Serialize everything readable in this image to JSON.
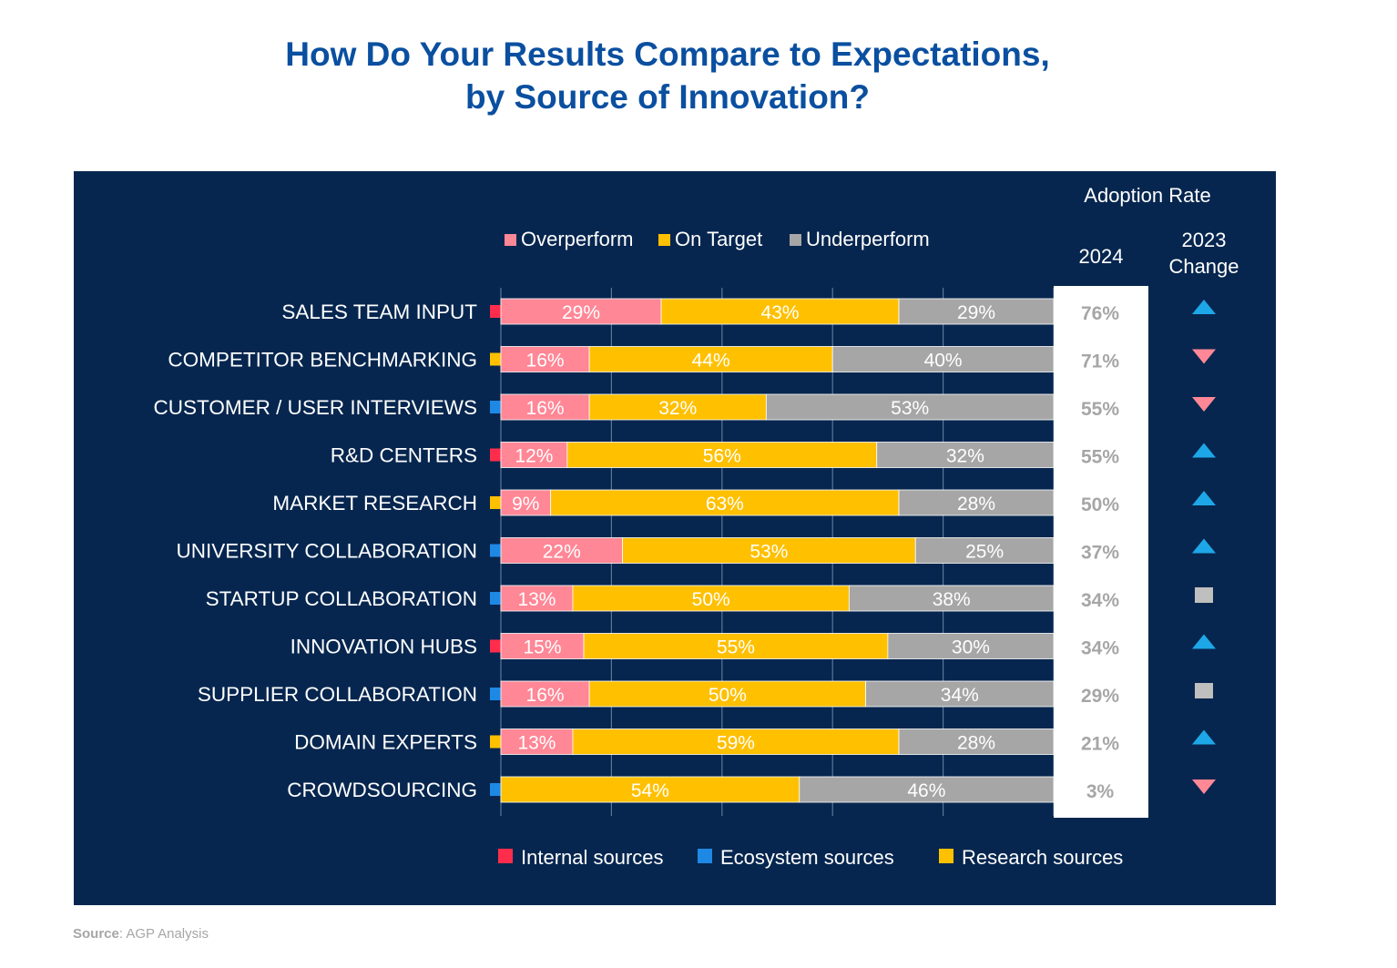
{
  "title": {
    "line1": "How Do Your Results Compare to Expectations,",
    "line2": "by Source of Innovation?"
  },
  "source": {
    "label": "Source",
    "text": ": AGP Analysis"
  },
  "colors": {
    "background": "#06264f",
    "title": "#0a4fa0",
    "overperform": "#ff8796",
    "on_target": "#ffc000",
    "underperform": "#a6a6a6",
    "internal": "#ff2d4b",
    "ecosystem": "#1e88e5",
    "research": "#ffc000",
    "trend_up": "#1ea7e8",
    "trend_down": "#ff8796",
    "trend_flat": "#bfbfbf",
    "adoption_box": "#ffffff",
    "adoption_text": "#a6a6a6"
  },
  "chart_data": {
    "type": "bar",
    "orientation": "horizontal",
    "stacked": true,
    "title": "How Do Your Results Compare to Expectations, by Source of Innovation?",
    "xlim": [
      0,
      100
    ],
    "grid": true,
    "legend": [
      {
        "name": "Overperform",
        "color": "#ff8796"
      },
      {
        "name": "On Target",
        "color": "#ffc000"
      },
      {
        "name": "Underperform",
        "color": "#a6a6a6"
      }
    ],
    "source_legend": [
      {
        "name": "Internal sources",
        "key": "internal"
      },
      {
        "name": "Ecosystem sources",
        "key": "ecosystem"
      },
      {
        "name": "Research sources",
        "key": "research"
      }
    ],
    "adoption_header": "Adoption Rate",
    "adoption_year": "2024",
    "change_header_1": "2023",
    "change_header_2": "Change",
    "categories": [
      "SALES TEAM INPUT",
      "COMPETITOR BENCHMARKING",
      "CUSTOMER / USER INTERVIEWS",
      "R&D CENTERS",
      "MARKET RESEARCH",
      "UNIVERSITY COLLABORATION",
      "STARTUP COLLABORATION",
      "INNOVATION HUBS",
      "SUPPLIER COLLABORATION",
      "DOMAIN EXPERTS",
      "CROWDSOURCING"
    ],
    "series": [
      {
        "name": "Overperform",
        "values": [
          29,
          16,
          16,
          12,
          9,
          22,
          13,
          15,
          16,
          13,
          0
        ]
      },
      {
        "name": "On Target",
        "values": [
          43,
          44,
          32,
          56,
          63,
          53,
          50,
          55,
          50,
          59,
          54
        ]
      },
      {
        "name": "Underperform",
        "values": [
          29,
          40,
          53,
          32,
          28,
          25,
          38,
          30,
          34,
          28,
          46
        ]
      }
    ],
    "source_type": [
      "internal",
      "research",
      "ecosystem",
      "internal",
      "research",
      "ecosystem",
      "ecosystem",
      "internal",
      "ecosystem",
      "research",
      "ecosystem"
    ],
    "adoption_2024": [
      76,
      71,
      55,
      55,
      50,
      37,
      34,
      34,
      29,
      21,
      3
    ],
    "change_2023": [
      "up",
      "down",
      "down",
      "up",
      "up",
      "up",
      "flat",
      "up",
      "flat",
      "up",
      "down"
    ]
  }
}
